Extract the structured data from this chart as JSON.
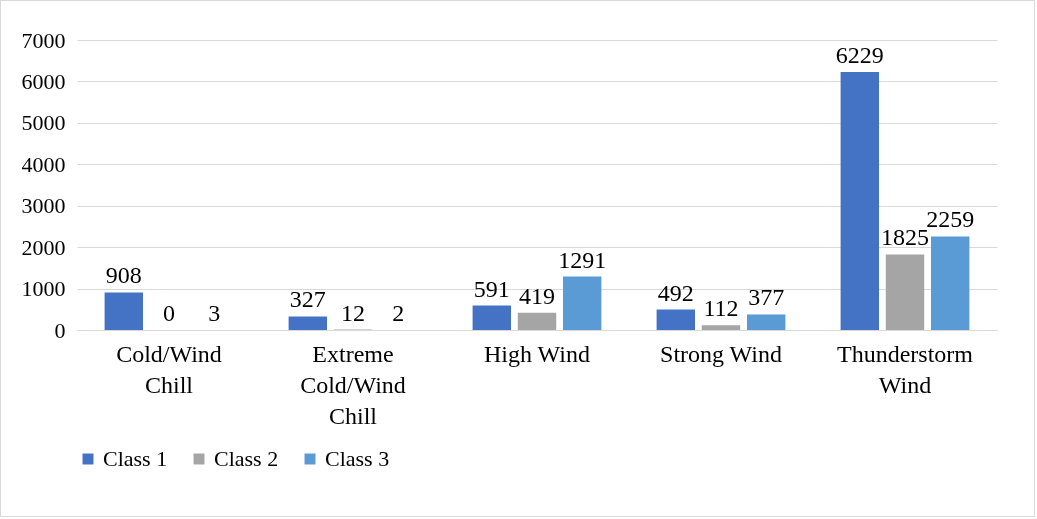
{
  "chart_data": {
    "type": "bar",
    "categories": [
      "Cold/Wind Chill",
      "Extreme Cold/Wind Chill",
      "High Wind",
      "Strong Wind",
      "Thunderstorm Wind"
    ],
    "series": [
      {
        "name": "Class 1",
        "color": "#4472c4",
        "values": [
          908,
          327,
          591,
          492,
          6229
        ]
      },
      {
        "name": "Class 2",
        "color": "#a5a5a5",
        "values": [
          0,
          12,
          419,
          112,
          1825
        ]
      },
      {
        "name": "Class 3",
        "color": "#5b9bd5",
        "values": [
          3,
          2,
          1291,
          377,
          2259
        ]
      }
    ],
    "ylim": [
      0,
      7000
    ],
    "yticks": [
      0,
      1000,
      2000,
      3000,
      4000,
      5000,
      6000,
      7000
    ],
    "grid": "y",
    "legend": "bottom",
    "data_labels": true
  }
}
